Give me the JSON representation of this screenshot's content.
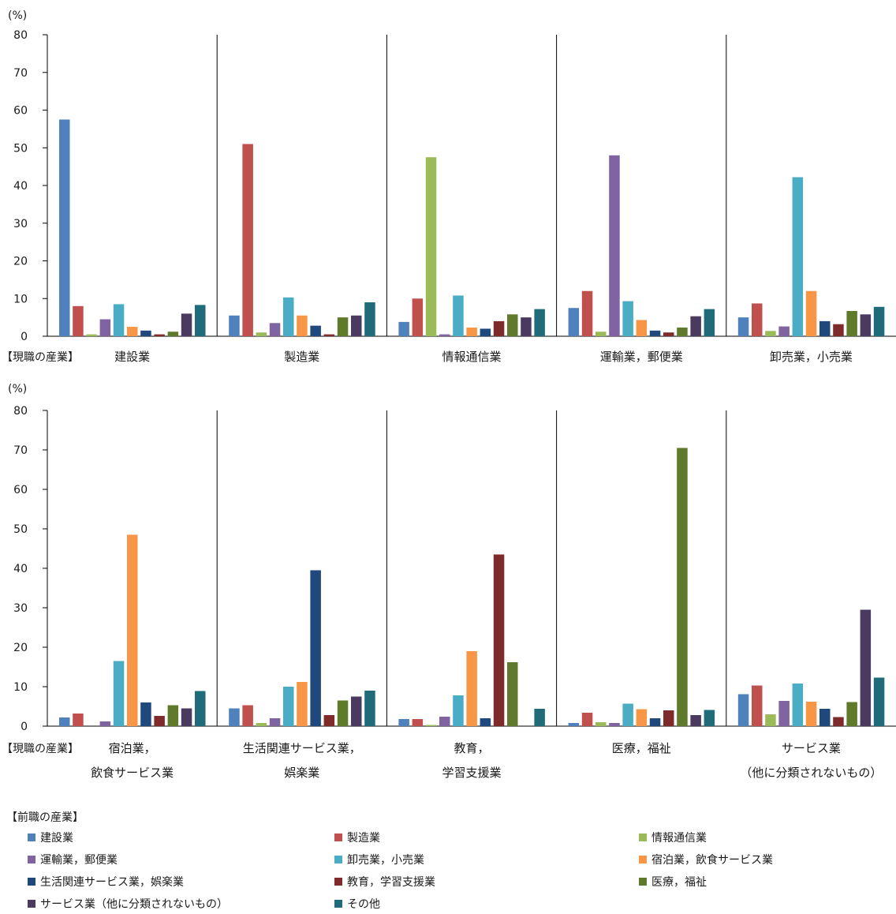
{
  "chart_data": {
    "type": "bar",
    "unit_label": "(%)",
    "ylim": [
      0,
      80
    ],
    "yticks": [
      "0",
      "10",
      "20",
      "30",
      "40",
      "50",
      "60",
      "70",
      "80"
    ],
    "current_industry_label": "【現職の産業】",
    "legend_title": "【前職の産業】",
    "series": [
      {
        "name": "建設業",
        "color": "#4F81BD"
      },
      {
        "name": "製造業",
        "color": "#C0504D"
      },
      {
        "name": "情報通信業",
        "color": "#9BBB59"
      },
      {
        "name": "運輸業，郵便業",
        "color": "#8064A2"
      },
      {
        "name": "卸売業，小売業",
        "color": "#4BACC6"
      },
      {
        "name": "宿泊業，飲食サービス業",
        "color": "#F79646"
      },
      {
        "name": "生活関連サービス業，娯楽業",
        "color": "#1F497D"
      },
      {
        "name": "教育，学習支援業",
        "color": "#7F2B2B"
      },
      {
        "name": "医療，福祉",
        "color": "#5E7A2A"
      },
      {
        "name": "サービス業（他に分類されないもの）",
        "color": "#4B3A60"
      },
      {
        "name": "その他",
        "color": "#1F6B7A"
      }
    ],
    "panels": [
      {
        "groups": [
          {
            "label_lines": [
              "建設業"
            ],
            "values": [
              57.5,
              8.0,
              0.5,
              4.5,
              8.5,
              2.5,
              1.5,
              0.5,
              1.2,
              6.0,
              8.3
            ]
          },
          {
            "label_lines": [
              "製造業"
            ],
            "values": [
              5.5,
              51.0,
              1.0,
              3.5,
              10.3,
              5.5,
              2.8,
              0.5,
              5.0,
              5.5,
              9.0
            ]
          },
          {
            "label_lines": [
              "情報通信業"
            ],
            "values": [
              3.8,
              10.0,
              47.5,
              0.5,
              10.8,
              2.3,
              2.0,
              4.0,
              5.8,
              5.0,
              7.2
            ]
          },
          {
            "label_lines": [
              "運輸業，郵便業"
            ],
            "values": [
              7.5,
              12.0,
              1.2,
              48.0,
              9.3,
              4.3,
              1.5,
              1.0,
              2.3,
              5.3,
              7.2
            ]
          },
          {
            "label_lines": [
              "卸売業，小売業"
            ],
            "values": [
              5.0,
              8.7,
              1.4,
              2.6,
              42.2,
              12.0,
              4.0,
              3.2,
              6.7,
              5.8,
              7.8
            ]
          }
        ]
      },
      {
        "groups": [
          {
            "label_lines": [
              "宿泊業，",
              "飲食サービス業"
            ],
            "values": [
              2.2,
              3.2,
              0.0,
              1.2,
              16.5,
              48.5,
              6.0,
              2.6,
              5.3,
              4.5,
              8.9
            ]
          },
          {
            "label_lines": [
              "生活関連サービス業，",
              "娯楽業"
            ],
            "values": [
              4.5,
              5.3,
              0.8,
              2.0,
              10.0,
              11.2,
              39.5,
              2.8,
              6.5,
              7.5,
              9.0
            ]
          },
          {
            "label_lines": [
              "教育，",
              "学習支援業"
            ],
            "values": [
              1.8,
              1.8,
              0.3,
              2.4,
              7.8,
              19.0,
              2.0,
              43.5,
              16.2,
              0.0,
              4.4
            ]
          },
          {
            "label_lines": [
              "医療，福祉"
            ],
            "values": [
              0.8,
              3.4,
              1.0,
              0.8,
              5.7,
              4.3,
              2.0,
              4.0,
              70.5,
              2.8,
              4.1
            ]
          },
          {
            "label_lines": [
              "サービス業",
              "（他に分類されないもの）"
            ],
            "values": [
              8.1,
              10.3,
              3.0,
              6.4,
              10.8,
              6.2,
              4.4,
              2.3,
              6.1,
              29.5,
              12.3
            ]
          }
        ]
      }
    ]
  }
}
